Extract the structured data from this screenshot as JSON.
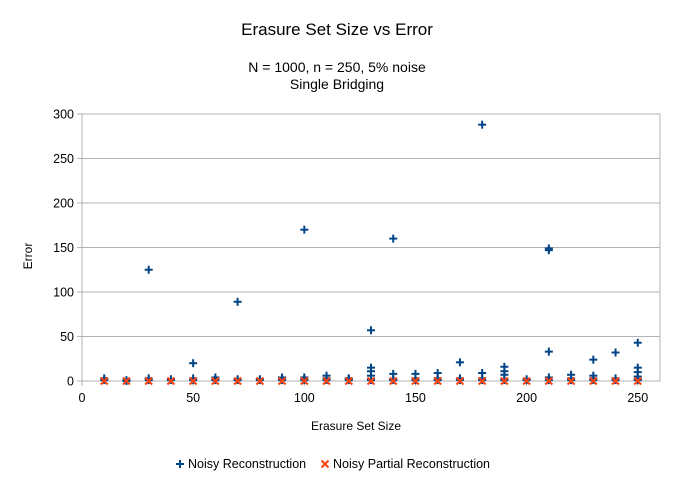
{
  "chart_data": {
    "type": "scatter",
    "title": "Erasure Set Size vs Error",
    "subtitle_lines": [
      "N = 1000, n = 250, 5% noise",
      "Single Bridging"
    ],
    "xlabel": "Erasure Set Size",
    "ylabel": "Error",
    "xlim": [
      0,
      260
    ],
    "ylim": [
      0,
      300
    ],
    "xticks": [
      0,
      50,
      100,
      150,
      200,
      250
    ],
    "yticks": [
      0,
      50,
      100,
      150,
      200,
      250,
      300
    ],
    "grid": true,
    "legend_position": "bottom",
    "series": [
      {
        "name": "Noisy Reconstruction",
        "color": "#004586",
        "marker": "plus",
        "points": [
          [
            10,
            3
          ],
          [
            10,
            1
          ],
          [
            20,
            1
          ],
          [
            20,
            0
          ],
          [
            30,
            125
          ],
          [
            30,
            3
          ],
          [
            30,
            1
          ],
          [
            40,
            2
          ],
          [
            40,
            1
          ],
          [
            50,
            20
          ],
          [
            50,
            3
          ],
          [
            50,
            1
          ],
          [
            60,
            4
          ],
          [
            60,
            2
          ],
          [
            60,
            1
          ],
          [
            70,
            89
          ],
          [
            70,
            2
          ],
          [
            70,
            1
          ],
          [
            80,
            2
          ],
          [
            80,
            1
          ],
          [
            90,
            4
          ],
          [
            90,
            2
          ],
          [
            90,
            1
          ],
          [
            100,
            170
          ],
          [
            100,
            4
          ],
          [
            100,
            2
          ],
          [
            100,
            1
          ],
          [
            110,
            6
          ],
          [
            110,
            3
          ],
          [
            110,
            1
          ],
          [
            120,
            3
          ],
          [
            120,
            2
          ],
          [
            120,
            1
          ],
          [
            130,
            57
          ],
          [
            130,
            15
          ],
          [
            130,
            11
          ],
          [
            130,
            6
          ],
          [
            130,
            2
          ],
          [
            130,
            1
          ],
          [
            140,
            160
          ],
          [
            140,
            8
          ],
          [
            140,
            2
          ],
          [
            140,
            1
          ],
          [
            150,
            8
          ],
          [
            150,
            3
          ],
          [
            150,
            1
          ],
          [
            160,
            9
          ],
          [
            160,
            3
          ],
          [
            160,
            1
          ],
          [
            170,
            21
          ],
          [
            170,
            3
          ],
          [
            170,
            1
          ],
          [
            180,
            288
          ],
          [
            180,
            9
          ],
          [
            180,
            3
          ],
          [
            180,
            1
          ],
          [
            190,
            16
          ],
          [
            190,
            11
          ],
          [
            190,
            7
          ],
          [
            190,
            2
          ],
          [
            190,
            1
          ],
          [
            200,
            2
          ],
          [
            200,
            1
          ],
          [
            210,
            149
          ],
          [
            210,
            147
          ],
          [
            210,
            33
          ],
          [
            210,
            4
          ],
          [
            210,
            1
          ],
          [
            220,
            7
          ],
          [
            220,
            3
          ],
          [
            220,
            1
          ],
          [
            230,
            24
          ],
          [
            230,
            6
          ],
          [
            230,
            3
          ],
          [
            230,
            1
          ],
          [
            240,
            32
          ],
          [
            240,
            3
          ],
          [
            240,
            1
          ],
          [
            250,
            43
          ],
          [
            250,
            15
          ],
          [
            250,
            10
          ],
          [
            250,
            5
          ],
          [
            250,
            2
          ],
          [
            250,
            1
          ]
        ]
      },
      {
        "name": "Noisy Partial Reconstruction",
        "color": "#ff420e",
        "marker": "x",
        "points": [
          [
            10,
            0
          ],
          [
            20,
            0
          ],
          [
            30,
            0
          ],
          [
            40,
            0
          ],
          [
            50,
            0
          ],
          [
            60,
            0
          ],
          [
            70,
            0
          ],
          [
            80,
            0
          ],
          [
            90,
            0
          ],
          [
            100,
            0
          ],
          [
            110,
            0
          ],
          [
            120,
            0
          ],
          [
            130,
            0
          ],
          [
            140,
            0
          ],
          [
            150,
            0
          ],
          [
            160,
            0
          ],
          [
            170,
            0
          ],
          [
            180,
            0
          ],
          [
            190,
            0
          ],
          [
            200,
            0
          ],
          [
            210,
            0
          ],
          [
            220,
            0
          ],
          [
            230,
            0
          ],
          [
            240,
            0
          ],
          [
            250,
            0
          ]
        ]
      }
    ]
  }
}
